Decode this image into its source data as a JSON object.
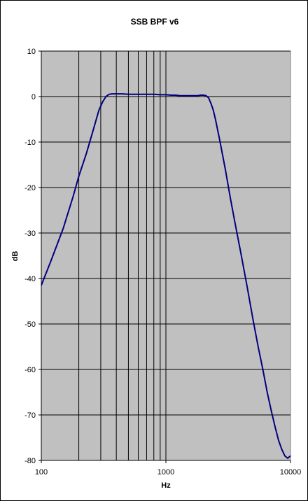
{
  "chart_data": {
    "type": "line",
    "title": "SSB BPF v6",
    "xlabel": "Hz",
    "ylabel": "dB",
    "x_scale": "log",
    "xlim": [
      100,
      10000
    ],
    "ylim": [
      -80,
      10
    ],
    "x_ticks": [
      100,
      1000,
      10000
    ],
    "x_tick_labels": [
      "100",
      "1000",
      "10000"
    ],
    "y_ticks": [
      10,
      0,
      -10,
      -20,
      -30,
      -40,
      -50,
      -60,
      -70,
      -80
    ],
    "y_tick_labels": [
      "10",
      "0",
      "-10",
      "-20",
      "-30",
      "-40",
      "-50",
      "-60",
      "-70",
      "-80"
    ],
    "grid": true,
    "plot_background": "#c0c0c0",
    "line_color": "#000080",
    "legend": "none",
    "series": [
      {
        "x": [
          100,
          120,
          150,
          180,
          200,
          230,
          260,
          290,
          310,
          330,
          350,
          370,
          400,
          450,
          500,
          600,
          700,
          800,
          900,
          1000,
          1100,
          1200,
          1300,
          1400,
          1500,
          1600,
          1700,
          1800,
          1900,
          2000,
          2100,
          2200,
          2300,
          2400,
          2500,
          2700,
          3000,
          3300,
          3600,
          4000,
          4500,
          5000,
          5500,
          6000,
          6500,
          7000,
          7500,
          8000,
          8500,
          9000,
          9500,
          10000
        ],
        "y": [
          -41.5,
          -36,
          -29,
          -22,
          -17.5,
          -12.5,
          -7.5,
          -3,
          -1.2,
          0,
          0.5,
          0.6,
          0.6,
          0.6,
          0.5,
          0.5,
          0.5,
          0.5,
          0.4,
          0.4,
          0.3,
          0.3,
          0.2,
          0.2,
          0.2,
          0.2,
          0.2,
          0.2,
          0.3,
          0.3,
          0.2,
          -0.3,
          -1.5,
          -3,
          -5,
          -9.5,
          -16,
          -22.5,
          -28,
          -34.5,
          -42,
          -49,
          -55,
          -60,
          -65,
          -69,
          -72.5,
          -75.5,
          -77.5,
          -79,
          -79.5,
          -79
        ]
      }
    ]
  }
}
